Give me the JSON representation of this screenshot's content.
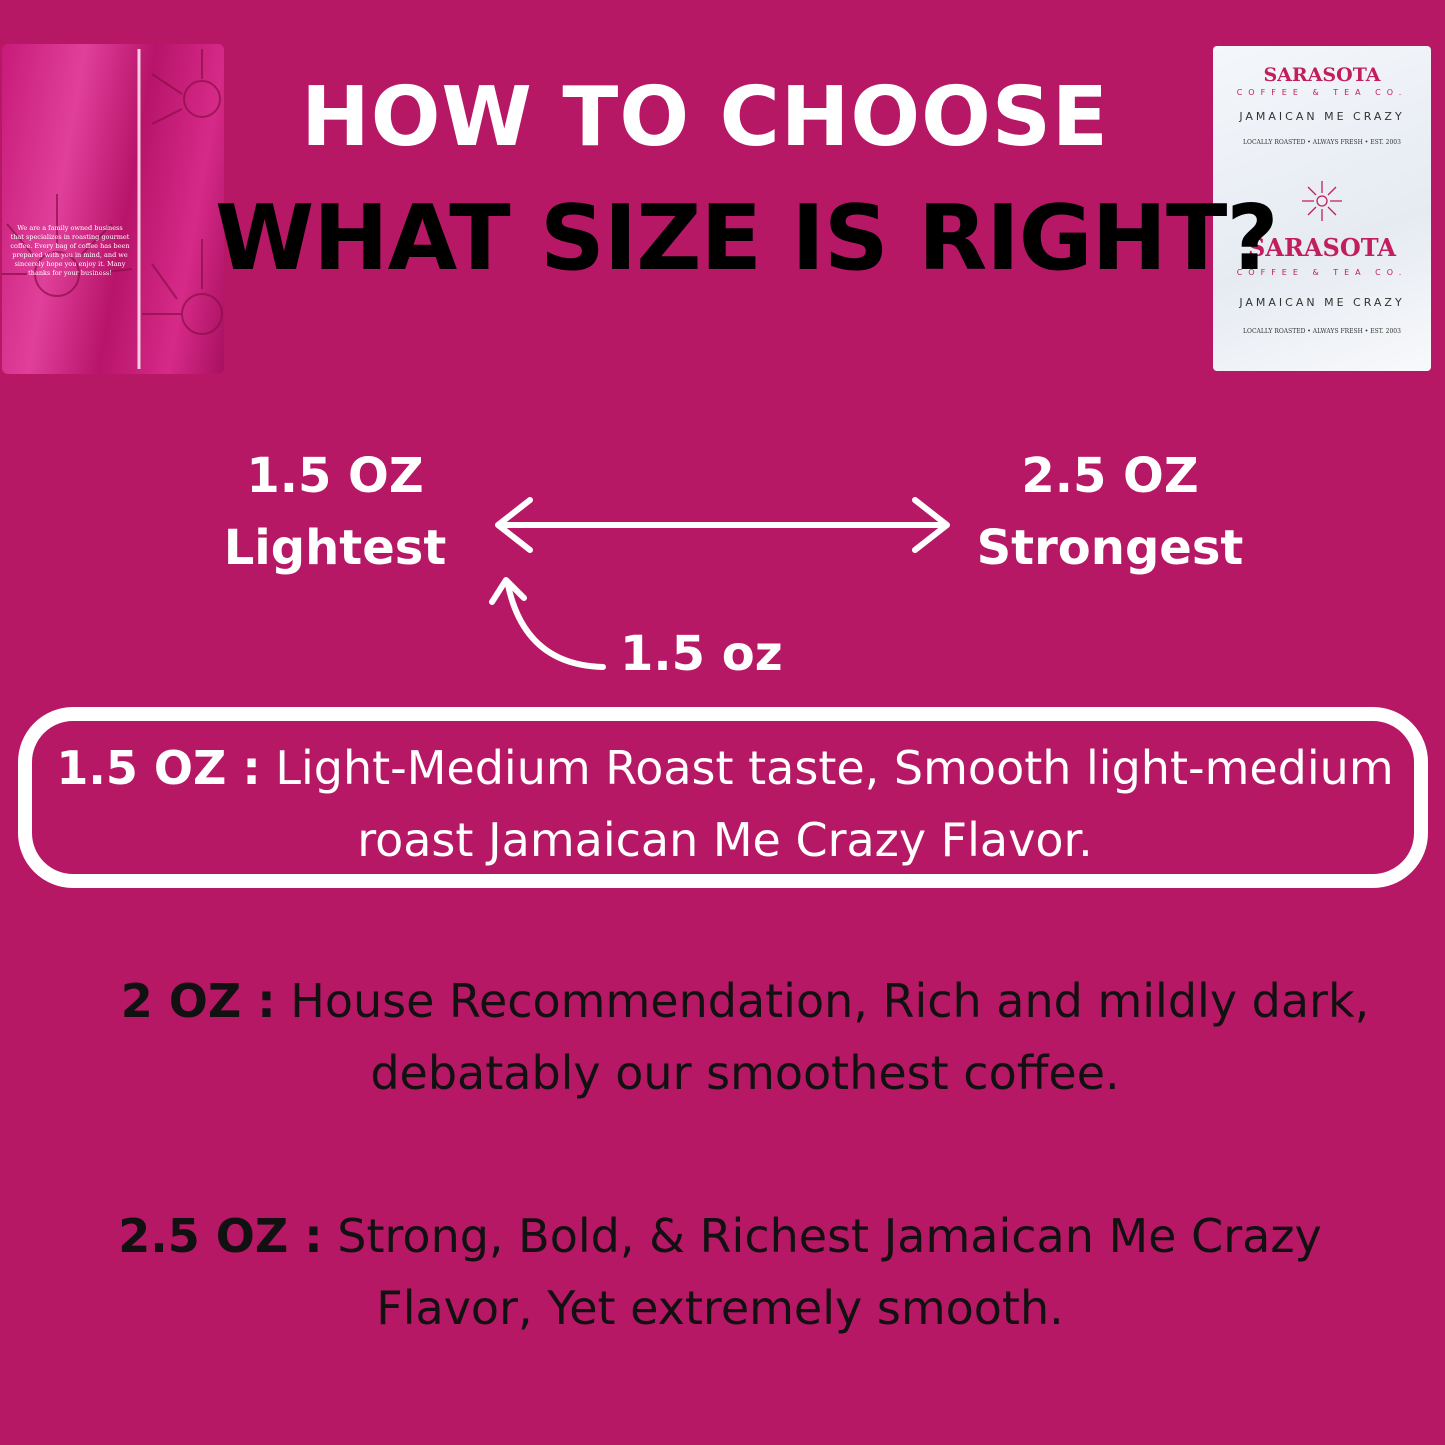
{
  "header": {
    "line1": "HOW TO CHOOSE",
    "line2": "WHAT SIZE IS RIGHT?"
  },
  "scale": {
    "left": {
      "size": "1.5 OZ",
      "label": "Lightest"
    },
    "right": {
      "size": "2.5 OZ",
      "label": "Strongest"
    },
    "marker": "1.5 oz"
  },
  "highlight": {
    "size": "1.5 OZ :",
    "text": "Light-Medium Roast taste, Smooth light-medium roast Jamaican Me Crazy Flavor."
  },
  "options": [
    {
      "size": "2 OZ :",
      "text": "House Recommendation, Rich and mildly dark, debatably our smoothest coffee."
    },
    {
      "size": "2.5 OZ :",
      "text": "Strong, Bold, & Richest Jamaican Me Crazy Flavor, Yet extremely smooth."
    }
  ],
  "packet_back": {
    "message": "We are a family owned business that specializes in roasting gourmet coffee. Every bag of coffee has been prepared with you in mind, and we sincerely hope you enjoy it. Many thanks for your business!"
  },
  "packet_front": {
    "brand": "SARASOTA",
    "sub": "COFFEE & TEA CO.",
    "flavor": "JAMAICAN ME CRAZY",
    "tagline": "LOCALLY ROASTED • ALWAYS FRESH • EST. 2003"
  },
  "colors": {
    "background": "#b71865",
    "accent": "#c21e5c"
  }
}
